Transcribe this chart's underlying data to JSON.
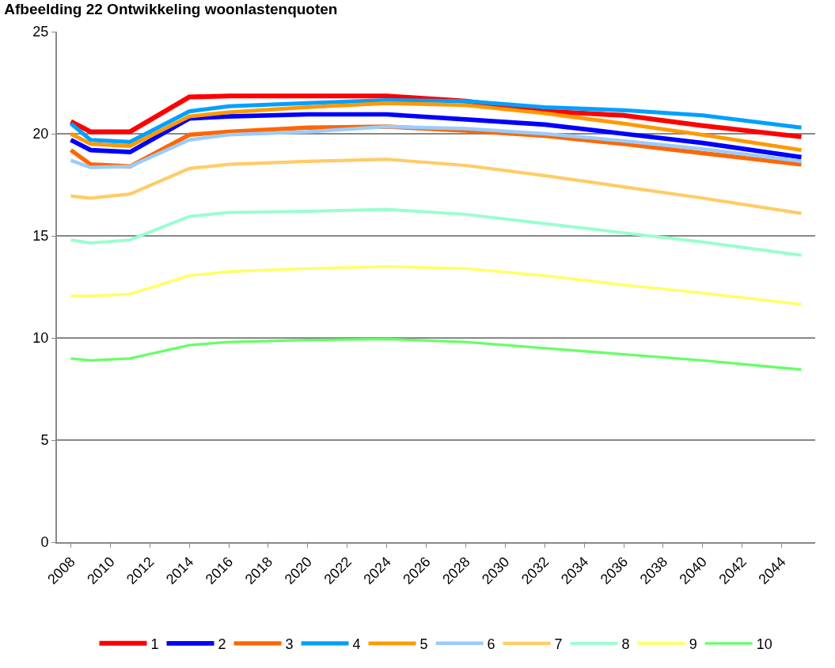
{
  "chart_data": {
    "type": "line",
    "title": "Afbeelding 22 Ontwikkeling woonlastenquoten",
    "x": [
      2008,
      2009,
      2011,
      2014,
      2016,
      2020,
      2024,
      2028,
      2032,
      2036,
      2040,
      2045
    ],
    "series": [
      {
        "name": "1",
        "color": "#ff0000",
        "values": [
          20.6,
          20.1,
          20.1,
          21.8,
          21.85,
          21.85,
          21.85,
          21.6,
          21.1,
          20.9,
          20.4,
          19.85
        ]
      },
      {
        "name": "2",
        "color": "#0000ff",
        "values": [
          19.7,
          19.2,
          19.1,
          20.75,
          20.85,
          20.95,
          20.95,
          20.7,
          20.45,
          20.0,
          19.55,
          18.85
        ]
      },
      {
        "name": "3",
        "color": "#ff6600",
        "values": [
          19.2,
          18.5,
          18.4,
          19.95,
          20.1,
          20.3,
          20.35,
          20.15,
          19.9,
          19.5,
          19.05,
          18.5
        ]
      },
      {
        "name": "4",
        "color": "#00a0ff",
        "values": [
          20.5,
          19.7,
          19.6,
          21.1,
          21.35,
          21.5,
          21.65,
          21.6,
          21.3,
          21.15,
          20.9,
          20.3
        ]
      },
      {
        "name": "5",
        "color": "#ff9900",
        "values": [
          20.0,
          19.5,
          19.4,
          20.85,
          21.05,
          21.3,
          21.5,
          21.4,
          21.0,
          20.5,
          19.95,
          19.2
        ]
      },
      {
        "name": "6",
        "color": "#99ccff",
        "values": [
          18.7,
          18.35,
          18.4,
          19.7,
          19.95,
          20.1,
          20.35,
          20.25,
          20.0,
          19.65,
          19.25,
          18.65
        ]
      },
      {
        "name": "7",
        "color": "#ffcc66",
        "values": [
          16.95,
          16.85,
          17.05,
          18.3,
          18.5,
          18.65,
          18.75,
          18.45,
          17.95,
          17.4,
          16.85,
          16.1
        ]
      },
      {
        "name": "8",
        "color": "#99ffcc",
        "values": [
          14.8,
          14.65,
          14.8,
          15.95,
          16.15,
          16.2,
          16.3,
          16.05,
          15.6,
          15.15,
          14.7,
          14.05
        ]
      },
      {
        "name": "9",
        "color": "#ffff66",
        "values": [
          12.05,
          12.05,
          12.15,
          13.05,
          13.25,
          13.4,
          13.5,
          13.4,
          13.05,
          12.6,
          12.2,
          11.65
        ]
      },
      {
        "name": "10",
        "color": "#66ff66",
        "values": [
          9.0,
          8.9,
          9.0,
          9.65,
          9.8,
          9.9,
          9.95,
          9.8,
          9.5,
          9.2,
          8.9,
          8.45
        ]
      }
    ],
    "xlim": [
      2007.3,
      2045.7
    ],
    "xticks": [
      2008,
      2010,
      2012,
      2014,
      2016,
      2018,
      2020,
      2022,
      2024,
      2026,
      2028,
      2030,
      2032,
      2034,
      2036,
      2038,
      2040,
      2042,
      2044
    ],
    "ylim": [
      0,
      25
    ],
    "yticks": [
      0,
      5,
      10,
      15,
      20,
      25
    ],
    "grid": "y",
    "legend": "bottom",
    "marker": "none",
    "line_style": "solid"
  }
}
